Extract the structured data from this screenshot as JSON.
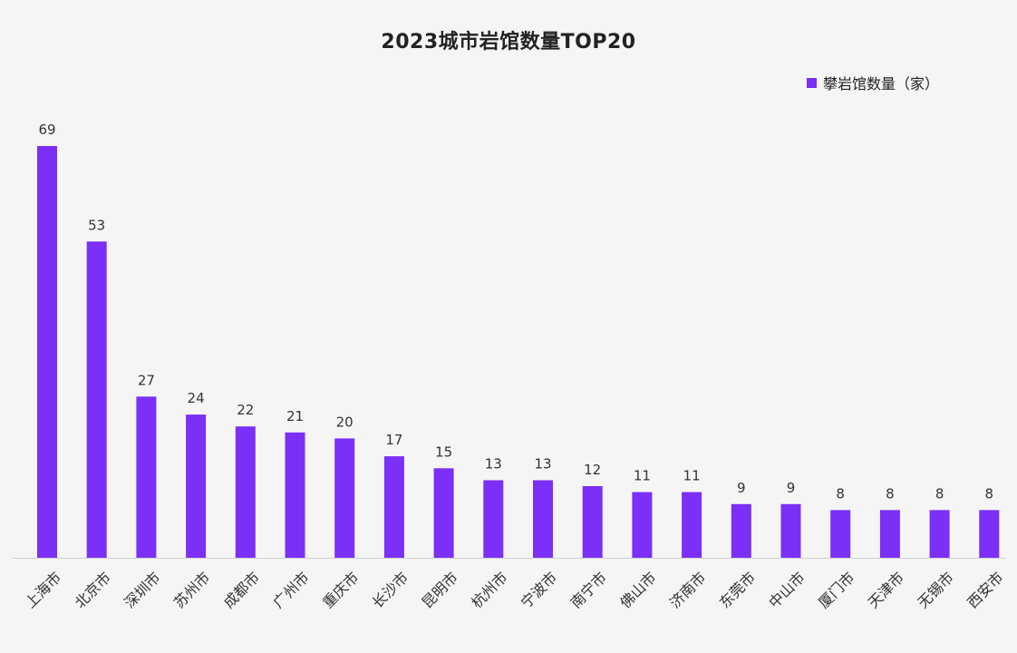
{
  "chart_data": {
    "type": "bar",
    "title": "2023城市岩馆数量TOP20",
    "categories": [
      "上海市",
      "北京市",
      "深圳市",
      "苏州市",
      "成都市",
      "广州市",
      "重庆市",
      "长沙市",
      "昆明市",
      "杭州市",
      "宁波市",
      "南宁市",
      "佛山市",
      "济南市",
      "东莞市",
      "中山市",
      "厦门市",
      "天津市",
      "无锡市",
      "西安市"
    ],
    "series": [
      {
        "name": "攀岩馆数量（家）",
        "color": "#7b2ff7",
        "values": [
          69,
          53,
          27,
          24,
          22,
          21,
          20,
          17,
          15,
          13,
          13,
          12,
          11,
          11,
          9,
          9,
          8,
          8,
          8,
          8
        ]
      }
    ],
    "xlabel": "",
    "ylabel": "",
    "ylim": [
      0,
      69
    ],
    "grid": false,
    "legend_position": "top-right",
    "data_labels": true
  }
}
